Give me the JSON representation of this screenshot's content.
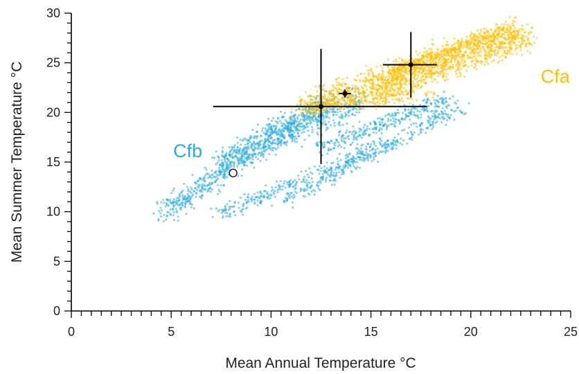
{
  "chart_data": {
    "type": "scatter",
    "title": "",
    "xlabel": "Mean Annual Temperature °C",
    "ylabel": "Mean Summer Temperature °C",
    "xlim": [
      0,
      25
    ],
    "ylim": [
      0,
      30
    ],
    "x_ticks": [
      0,
      5,
      10,
      15,
      20,
      25
    ],
    "y_ticks": [
      0,
      5,
      10,
      15,
      20,
      25,
      30
    ],
    "x_minor_step": 0.5,
    "y_minor_step": 1,
    "grid": false,
    "legend": "none",
    "clusters": [
      {
        "label": "Cfb",
        "color": "#29abe2",
        "label_position": [
          5.1,
          15.5
        ],
        "bands": [
          {
            "from": [
              4.6,
              10.0
            ],
            "to": [
              12.8,
              21.0
            ],
            "spread": 1.3,
            "count": 700
          },
          {
            "from": [
              7.3,
              15.2
            ],
            "to": [
              14.5,
              21.3
            ],
            "spread": 1.6,
            "count": 500
          },
          {
            "from": [
              7.5,
              9.8
            ],
            "to": [
              15.8,
              17.0
            ],
            "spread": 0.7,
            "count": 300
          },
          {
            "from": [
              10.5,
              11.0
            ],
            "to": [
              19.5,
              20.5
            ],
            "spread": 0.7,
            "count": 300
          },
          {
            "from": [
              12.5,
              16.5
            ],
            "to": [
              19.0,
              21.5
            ],
            "spread": 0.9,
            "count": 300
          }
        ]
      },
      {
        "label": "Cfa",
        "color": "#ffc000",
        "label_position": [
          23.5,
          23.0
        ],
        "bands": [
          {
            "from": [
              11.5,
              20.5
            ],
            "to": [
              22.5,
              28.3
            ],
            "spread": 1.4,
            "count": 900
          },
          {
            "from": [
              14.5,
              21.5
            ],
            "to": [
              23.1,
              27.5
            ],
            "spread": 1.1,
            "count": 500
          },
          {
            "from": [
              16.0,
              24.0
            ],
            "to": [
              22.0,
              28.6
            ],
            "spread": 0.8,
            "count": 400
          },
          {
            "from": [
              12.0,
              20.5
            ],
            "to": [
              18.0,
              22.0
            ],
            "spread": 0.7,
            "count": 200
          }
        ]
      }
    ],
    "error_points": [
      {
        "x": 12.5,
        "y": 20.6,
        "x_err": [
          7.1,
          17.8
        ],
        "y_err": [
          14.8,
          26.4
        ]
      },
      {
        "x": 17.0,
        "y": 24.8,
        "x_err": [
          15.6,
          18.3
        ],
        "y_err": [
          21.5,
          28.1
        ]
      },
      {
        "x": 13.7,
        "y": 21.9,
        "x_err": [
          13.4,
          14.0
        ],
        "y_err": [
          21.5,
          22.3
        ]
      }
    ],
    "open_marker": {
      "x": 8.1,
      "y": 13.9
    }
  }
}
